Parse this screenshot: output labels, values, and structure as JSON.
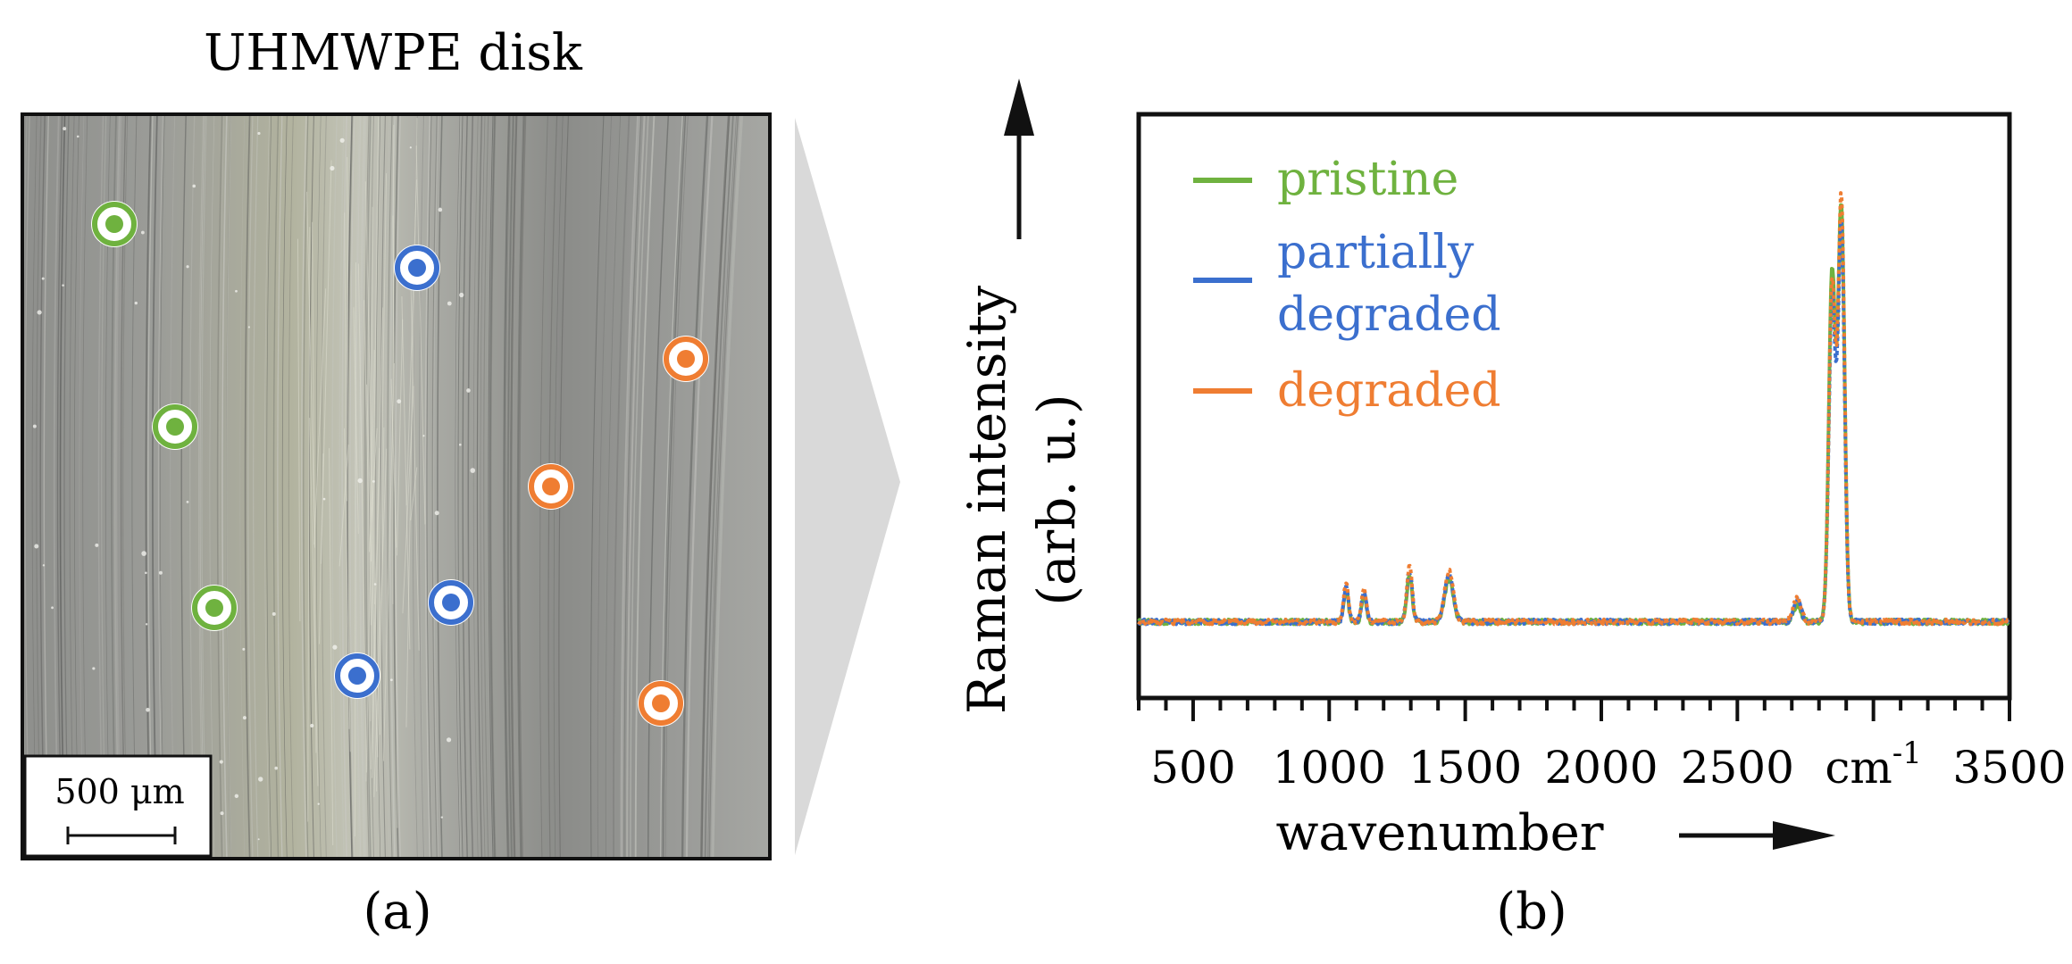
{
  "panel_a": {
    "title": "UHMWPE disk",
    "scale_bar_label": "500 μm",
    "caption": "(a)",
    "markers": [
      {
        "state": "pristine"
      },
      {
        "state": "pristine"
      },
      {
        "state": "pristine"
      },
      {
        "state": "partially degraded"
      },
      {
        "state": "partially degraded"
      },
      {
        "state": "partially degraded"
      },
      {
        "state": "degraded"
      },
      {
        "state": "degraded"
      },
      {
        "state": "degraded"
      }
    ]
  },
  "panel_b": {
    "caption": "(b)",
    "unit_label": "cm",
    "unit_exponent": "-1"
  },
  "colors": {
    "pristine": "#6fb23f",
    "partially_degraded": "#3b6fce",
    "degraded": "#ef7d32",
    "frame": "#111111",
    "arrow_band": "#d9d9d9"
  },
  "chart_data": {
    "type": "line",
    "title": "",
    "xlabel": "wavenumber",
    "ylabel_line1": "Raman intensity",
    "ylabel_line2": "(arb. u.)",
    "xlim": [
      300,
      3500
    ],
    "ylim": [
      -0.18,
      1.2
    ],
    "ylabel_note": "arbitrary units; baseline ≈ 0, peak ≈ 1.0",
    "x_ticks": [
      500,
      1000,
      1500,
      2000,
      2500,
      3000,
      3500
    ],
    "x_tick_labels": [
      "500",
      "1000",
      "1500",
      "2000",
      "2500",
      "cm-1",
      "3500"
    ],
    "legend": [
      {
        "label": "pristine",
        "color": "#6fb23f"
      },
      {
        "label_line1": "partially",
        "label_line2": "degraded",
        "color": "#3b6fce"
      },
      {
        "label": "degraded",
        "color": "#ef7d32"
      }
    ],
    "legend_location": "top-left",
    "series": [
      {
        "name": "pristine",
        "color": "#6fb23f",
        "peaks": [
          [
            1062,
            0.07
          ],
          [
            1128,
            0.06
          ],
          [
            1295,
            0.11
          ],
          [
            1440,
            0.1
          ],
          [
            2720,
            0.04
          ],
          [
            2848,
            0.82
          ],
          [
            2882,
            0.98
          ]
        ]
      },
      {
        "name": "partially degraded",
        "color": "#3b6fce",
        "peaks": [
          [
            1062,
            0.08
          ],
          [
            1128,
            0.07
          ],
          [
            1295,
            0.12
          ],
          [
            1440,
            0.11
          ],
          [
            2720,
            0.05
          ],
          [
            2848,
            0.76
          ],
          [
            2882,
            0.93
          ]
        ]
      },
      {
        "name": "degraded",
        "color": "#ef7d32",
        "peaks": [
          [
            1062,
            0.09
          ],
          [
            1128,
            0.08
          ],
          [
            1295,
            0.13
          ],
          [
            1440,
            0.12
          ],
          [
            2720,
            0.06
          ],
          [
            2848,
            0.8
          ],
          [
            2882,
            1.0
          ]
        ]
      }
    ]
  }
}
